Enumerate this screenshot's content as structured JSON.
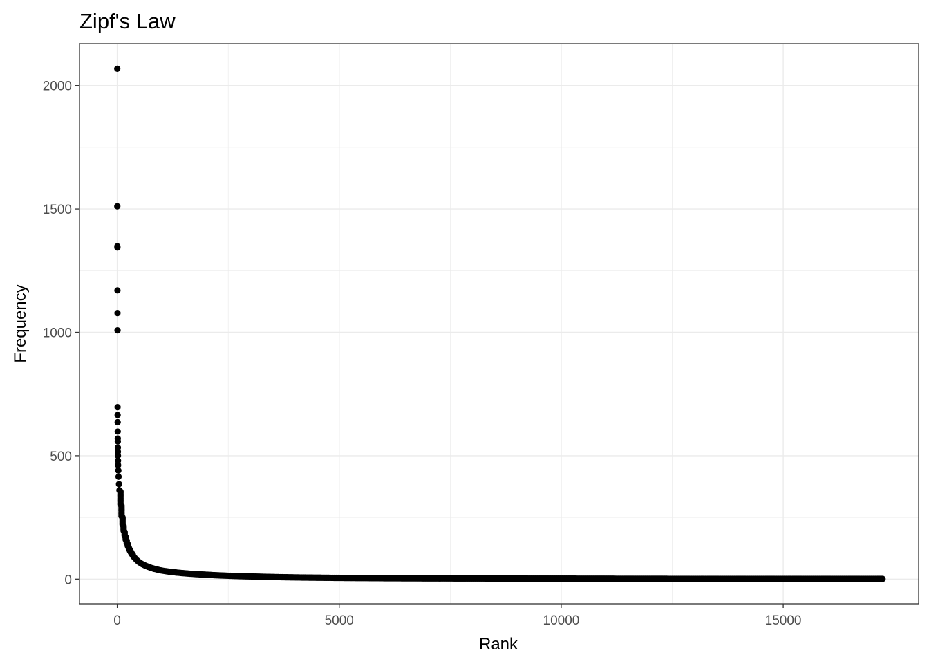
{
  "chart_data": {
    "type": "scatter",
    "title": "Zipf's Law",
    "xlabel": "Rank",
    "ylabel": "Frequency",
    "xlim": [
      -850,
      18050
    ],
    "ylim": [
      -100,
      2170
    ],
    "x_ticks": [
      0,
      5000,
      10000,
      15000
    ],
    "y_ticks": [
      0,
      500,
      1000,
      1500,
      2000
    ],
    "x_minor_gridlines": [
      2500,
      7500,
      12500,
      17500
    ],
    "y_minor_gridlines": [
      250,
      750,
      1250,
      1750
    ],
    "grid": true,
    "legend": "none",
    "theme": "bw",
    "point_color": "#000000",
    "panel_border_color": "#333333",
    "gridline_color": "#ebebeb",
    "n_points": 17250,
    "series": [
      {
        "top_points": [
          {
            "x": 1,
            "y": 2068
          },
          {
            "x": 2,
            "y": 1511
          },
          {
            "x": 3,
            "y": 1349
          },
          {
            "x": 4,
            "y": 1344
          },
          {
            "x": 5,
            "y": 1170
          },
          {
            "x": 6,
            "y": 1078
          },
          {
            "x": 7,
            "y": 1008
          },
          {
            "x": 8,
            "y": 697
          },
          {
            "x": 9,
            "y": 665
          },
          {
            "x": 10,
            "y": 636
          },
          {
            "x": 11,
            "y": 598
          },
          {
            "x": 12,
            "y": 570
          },
          {
            "x": 13,
            "y": 558
          },
          {
            "x": 14,
            "y": 533
          },
          {
            "x": 15,
            "y": 516
          },
          {
            "x": 16,
            "y": 500
          },
          {
            "x": 18,
            "y": 480
          },
          {
            "x": 20,
            "y": 462
          },
          {
            "x": 25,
            "y": 440
          },
          {
            "x": 30,
            "y": 415
          },
          {
            "x": 40,
            "y": 385
          }
        ],
        "tail_curve": [
          {
            "x": 50,
            "y": 360
          },
          {
            "x": 75,
            "y": 300
          },
          {
            "x": 100,
            "y": 250
          },
          {
            "x": 150,
            "y": 190
          },
          {
            "x": 200,
            "y": 155
          },
          {
            "x": 300,
            "y": 110
          },
          {
            "x": 400,
            "y": 85
          },
          {
            "x": 500,
            "y": 68
          },
          {
            "x": 700,
            "y": 50
          },
          {
            "x": 1000,
            "y": 35
          },
          {
            "x": 1500,
            "y": 24
          },
          {
            "x": 2000,
            "y": 18
          },
          {
            "x": 3000,
            "y": 11
          },
          {
            "x": 4000,
            "y": 7
          },
          {
            "x": 5000,
            "y": 5
          },
          {
            "x": 7000,
            "y": 3
          },
          {
            "x": 10000,
            "y": 2
          },
          {
            "x": 13000,
            "y": 1
          },
          {
            "x": 17250,
            "y": 1
          }
        ]
      }
    ]
  }
}
